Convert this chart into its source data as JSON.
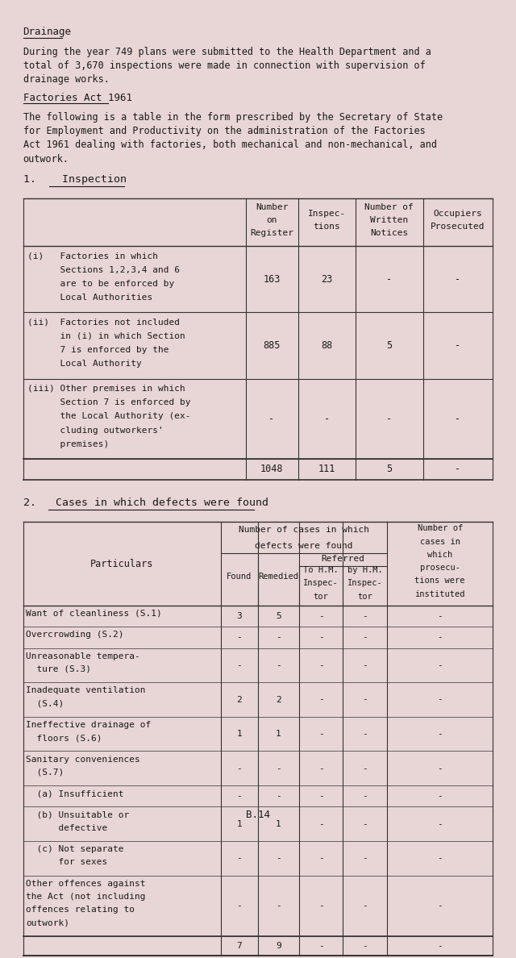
{
  "bg_color": "#e8d5d5",
  "text_color": "#1a1a1a",
  "title1": "Drainage",
  "para1_lines": [
    "During the year 749 plans were submitted to the Health Department and a",
    "total of 3,670 inspections were made in connection with supervision of",
    "drainage works."
  ],
  "title2": "Factories Act 1961",
  "para2_lines": [
    "The following is a table in the form prescribed by the Secretary of State",
    "for Employment and Productivity on the administration of the Factories",
    "Act 1961 dealing with factories, both mechanical and non-mechanical, and",
    "outwork."
  ],
  "section1_heading": "1.    Inspection",
  "t1_header": [
    "Number\non\nRegister",
    "Inspec-\ntions",
    "Number of\nWritten\nNotices",
    "Occupiers\nProsecuted"
  ],
  "t1_rows": [
    {
      "lines": [
        "(i)   Factories in which",
        "      Sections 1,2,3,4 and 6",
        "      are to be enforced by",
        "      Local Authorities"
      ],
      "vals": [
        "163",
        "23",
        "-",
        "-"
      ]
    },
    {
      "lines": [
        "(ii)  Factories not included",
        "      in (i) in which Section",
        "      7 is enforced by the",
        "      Local Authority"
      ],
      "vals": [
        "885",
        "88",
        "5",
        "-"
      ]
    },
    {
      "lines": [
        "(iii) Other premises in which",
        "      Section 7 is enforced by",
        "      the Local Authority (ex-",
        "      cluding outworkers'",
        "      premises)"
      ],
      "vals": [
        "-",
        "-",
        "-",
        "-"
      ]
    },
    {
      "lines": [],
      "vals": [
        "1048",
        "111",
        "5",
        "-"
      ],
      "total": true
    }
  ],
  "section2_heading": "2.   Cases in which defects were found",
  "t2_rows": [
    {
      "lines": [
        "Want of cleanliness (S.1)"
      ],
      "vals": [
        "3",
        "5",
        "-",
        "-",
        "-"
      ]
    },
    {
      "lines": [
        "Overcrowding (S.2)"
      ],
      "vals": [
        "-",
        "-",
        "-",
        "-",
        "-"
      ]
    },
    {
      "lines": [
        "Unreasonable tempera-",
        "  ture (S.3)"
      ],
      "vals": [
        "-",
        "-",
        "-",
        "-",
        "-"
      ]
    },
    {
      "lines": [
        "Inadequate ventilation",
        "  (S.4)"
      ],
      "vals": [
        "2",
        "2",
        "-",
        "-",
        "-"
      ]
    },
    {
      "lines": [
        "Ineffective drainage of",
        "  floors (S.6)"
      ],
      "vals": [
        "1",
        "1",
        "-",
        "-",
        "-"
      ]
    },
    {
      "lines": [
        "Sanitary conveniences",
        "  (S.7)"
      ],
      "vals": [
        "-",
        "-",
        "-",
        "-",
        "-"
      ]
    },
    {
      "lines": [
        "  (a) Insufficient"
      ],
      "vals": [
        "-",
        "-",
        "-",
        "-",
        "-"
      ]
    },
    {
      "lines": [
        "  (b) Unsuitable or",
        "      defective"
      ],
      "vals": [
        "1",
        "1",
        "-",
        "-",
        "-"
      ]
    },
    {
      "lines": [
        "  (c) Not separate",
        "      for sexes"
      ],
      "vals": [
        "-",
        "-",
        "-",
        "-",
        "-"
      ]
    },
    {
      "lines": [
        "Other offences against",
        "the Act (not including",
        "offences relating to",
        "outwork)"
      ],
      "vals": [
        "-",
        "-",
        "-",
        "-",
        "-"
      ]
    },
    {
      "lines": [],
      "vals": [
        "7",
        "9",
        "-",
        "-",
        "-"
      ],
      "total": true
    }
  ],
  "footer": "B.14"
}
